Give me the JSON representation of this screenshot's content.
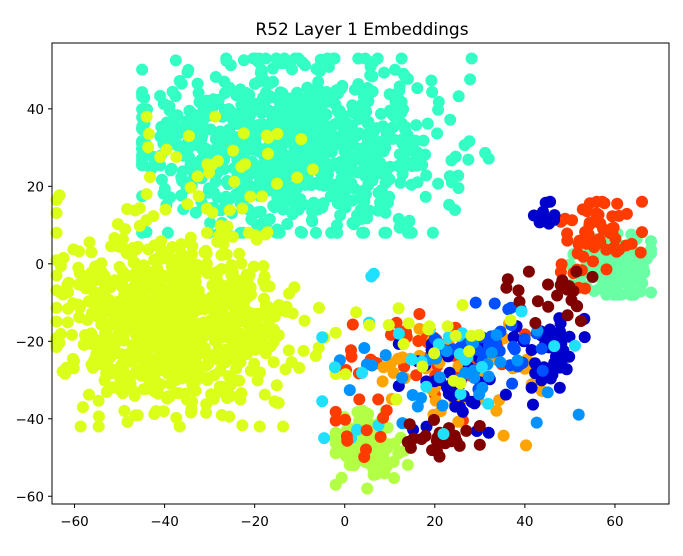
{
  "chart_data": {
    "type": "scatter",
    "title": "R52 Layer 1 Embeddings",
    "xlabel": "",
    "ylabel": "",
    "xlim": [
      -65,
      72
    ],
    "ylim": [
      -62,
      57
    ],
    "xticks": [
      -60,
      -40,
      -20,
      0,
      20,
      40,
      60
    ],
    "yticks": [
      -60,
      -40,
      -20,
      0,
      20,
      40
    ],
    "xtick_labels": [
      "−60",
      "−40",
      "−20",
      "0",
      "20",
      "40",
      "60"
    ],
    "ytick_labels": [
      "−60",
      "−40",
      "−20",
      "0",
      "20",
      "40"
    ],
    "grid": false,
    "legend": "none",
    "colormap": "jet",
    "clusters": [
      {
        "color": "#33ffc4",
        "cx": -12,
        "cy": 30,
        "sx": 17,
        "sy": 11,
        "n": 900,
        "dx": [
          -45,
          40
        ],
        "dy": [
          8,
          53
        ]
      },
      {
        "color": "#dcff1a",
        "cx": -38,
        "cy": -15,
        "sx": 12,
        "sy": 11,
        "n": 850,
        "dx": [
          -64,
          -2
        ],
        "dy": [
          -42,
          18
        ]
      },
      {
        "color": "#b2ff45",
        "cx": 5,
        "cy": -47,
        "sx": 3.5,
        "sy": 4.5,
        "n": 130,
        "dx": [
          -2,
          14
        ],
        "dy": [
          -58,
          -38
        ]
      },
      {
        "color": "#6affa4",
        "cx": 60,
        "cy": -1,
        "sx": 4.5,
        "sy": 4,
        "n": 150,
        "dx": [
          50,
          68
        ],
        "dy": [
          -8,
          10
        ]
      },
      {
        "color": "#ff3b00",
        "cx": 56,
        "cy": 8,
        "sx": 5,
        "sy": 5,
        "n": 60,
        "dx": [
          48,
          66
        ],
        "dy": [
          -10,
          16
        ]
      },
      {
        "color": "#ff3b00",
        "cx": 18,
        "cy": -24,
        "sx": 9,
        "sy": 6,
        "n": 55,
        "dx": [
          -2,
          40
        ],
        "dy": [
          -48,
          -10
        ]
      },
      {
        "color": "#ffa300",
        "cx": 25,
        "cy": -32,
        "sx": 10,
        "sy": 7,
        "n": 45,
        "dx": [
          -5,
          45
        ],
        "dy": [
          -50,
          -8
        ]
      },
      {
        "color": "#0000cc",
        "cx": 46,
        "cy": -22,
        "sx": 4,
        "sy": 4,
        "n": 45,
        "dx": [
          38,
          57
        ],
        "dy": [
          -32,
          -14
        ]
      },
      {
        "color": "#0000cc",
        "cx": 26,
        "cy": -33,
        "sx": 7,
        "sy": 7,
        "n": 40,
        "dx": [
          12,
          42
        ],
        "dy": [
          -46,
          -18
        ]
      },
      {
        "color": "#0000cc",
        "cx": 45,
        "cy": 12,
        "sx": 2,
        "sy": 2,
        "n": 12,
        "dx": [
          42,
          49
        ],
        "dy": [
          9,
          16
        ]
      },
      {
        "color": "#0050ff",
        "cx": 33,
        "cy": -22,
        "sx": 6,
        "sy": 6,
        "n": 35,
        "dx": [
          20,
          48
        ],
        "dy": [
          -40,
          -10
        ]
      },
      {
        "color": "#0093ff",
        "cx": 22,
        "cy": -28,
        "sx": 11,
        "sy": 8,
        "n": 35,
        "dx": [
          -8,
          52
        ],
        "dy": [
          -50,
          -8
        ]
      },
      {
        "color": "#800000",
        "cx": 22,
        "cy": -45,
        "sx": 4,
        "sy": 2.5,
        "n": 25,
        "dx": [
          14,
          30
        ],
        "dy": [
          -50,
          -40
        ]
      },
      {
        "color": "#800000",
        "cx": 45,
        "cy": -9,
        "sx": 5,
        "sy": 4,
        "n": 22,
        "dx": [
          -2,
          56
        ],
        "dy": [
          -32,
          -2
        ]
      },
      {
        "color": "#1fe0ff",
        "cx": 20,
        "cy": -26,
        "sx": 14,
        "sy": 10,
        "n": 30,
        "dx": [
          -5,
          58
        ],
        "dy": [
          -45,
          12
        ]
      },
      {
        "color": "#ff3b00",
        "cx": 3,
        "cy": -42,
        "sx": 4,
        "sy": 4,
        "n": 12,
        "dx": [
          -2,
          12
        ],
        "dy": [
          -50,
          -35
        ]
      },
      {
        "color": "#dcff1a",
        "cx": -26,
        "cy": 24,
        "sx": 10,
        "sy": 10,
        "n": 40,
        "dx": [
          -44,
          -5
        ],
        "dy": [
          8,
          38
        ]
      },
      {
        "color": "#dcff1a",
        "cx": 20,
        "cy": -20,
        "sx": 10,
        "sy": 8,
        "n": 22,
        "dx": [
          -2,
          45
        ],
        "dy": [
          -35,
          -5
        ]
      }
    ]
  }
}
